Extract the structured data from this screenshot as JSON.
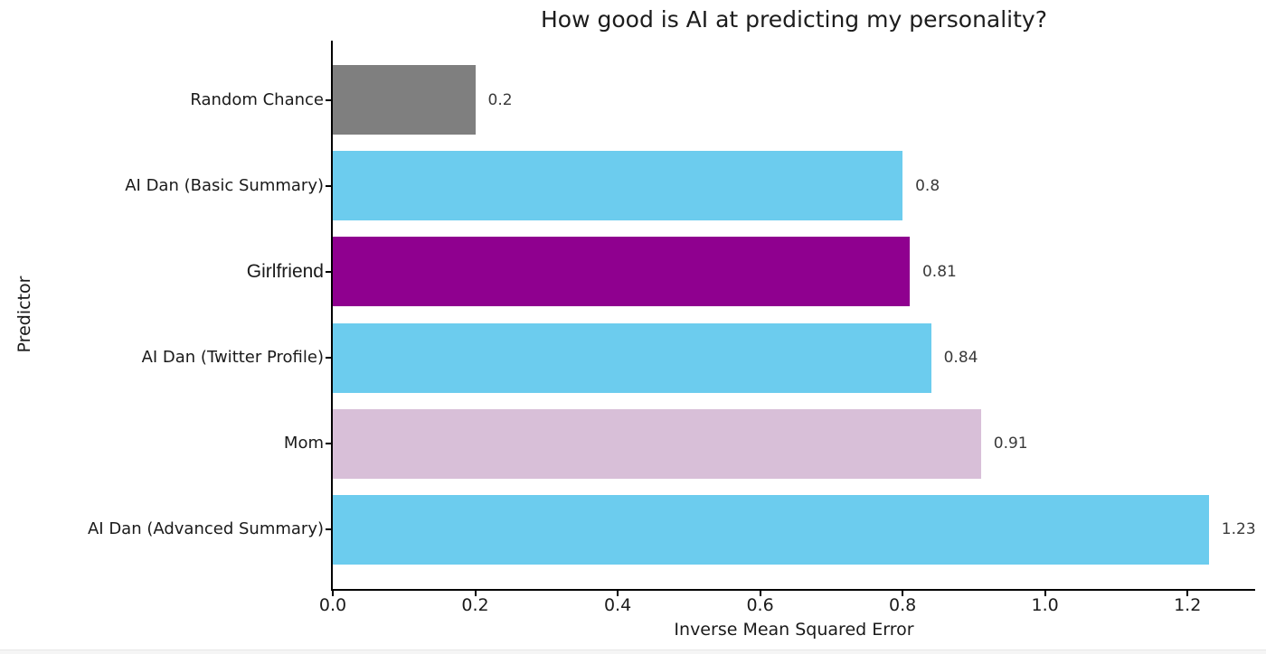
{
  "chart_data": {
    "type": "bar",
    "orientation": "horizontal",
    "title": "How good is AI at predicting my personality?",
    "xlabel": "Inverse Mean Squared Error",
    "ylabel": "Predictor",
    "categories": [
      "Random Chance",
      "AI Dan (Basic Summary)",
      "Girlfriend",
      "AI Dan (Twitter Profile)",
      "Mom",
      "AI Dan (Advanced Summary)"
    ],
    "values": [
      0.2,
      0.8,
      0.81,
      0.84,
      0.91,
      1.23
    ],
    "value_labels": [
      "0.2",
      "0.8",
      "0.81",
      "0.84",
      "0.91",
      "1.23"
    ],
    "bar_colors": [
      "#7f7f7f",
      "#6cccee",
      "#8f008f",
      "#6cccee",
      "#d8bfd8",
      "#6cccee"
    ],
    "xlim": [
      0,
      1.295
    ],
    "xticks": [
      0.0,
      0.2,
      0.4,
      0.6,
      0.8,
      1.0,
      1.2
    ],
    "xtick_labels": [
      "0.0",
      "0.2",
      "0.4",
      "0.6",
      "0.8",
      "1.0",
      "1.2"
    ],
    "grid": false,
    "legend": null,
    "background_color": "#ffffff",
    "text_color": "#1a1a1a"
  }
}
